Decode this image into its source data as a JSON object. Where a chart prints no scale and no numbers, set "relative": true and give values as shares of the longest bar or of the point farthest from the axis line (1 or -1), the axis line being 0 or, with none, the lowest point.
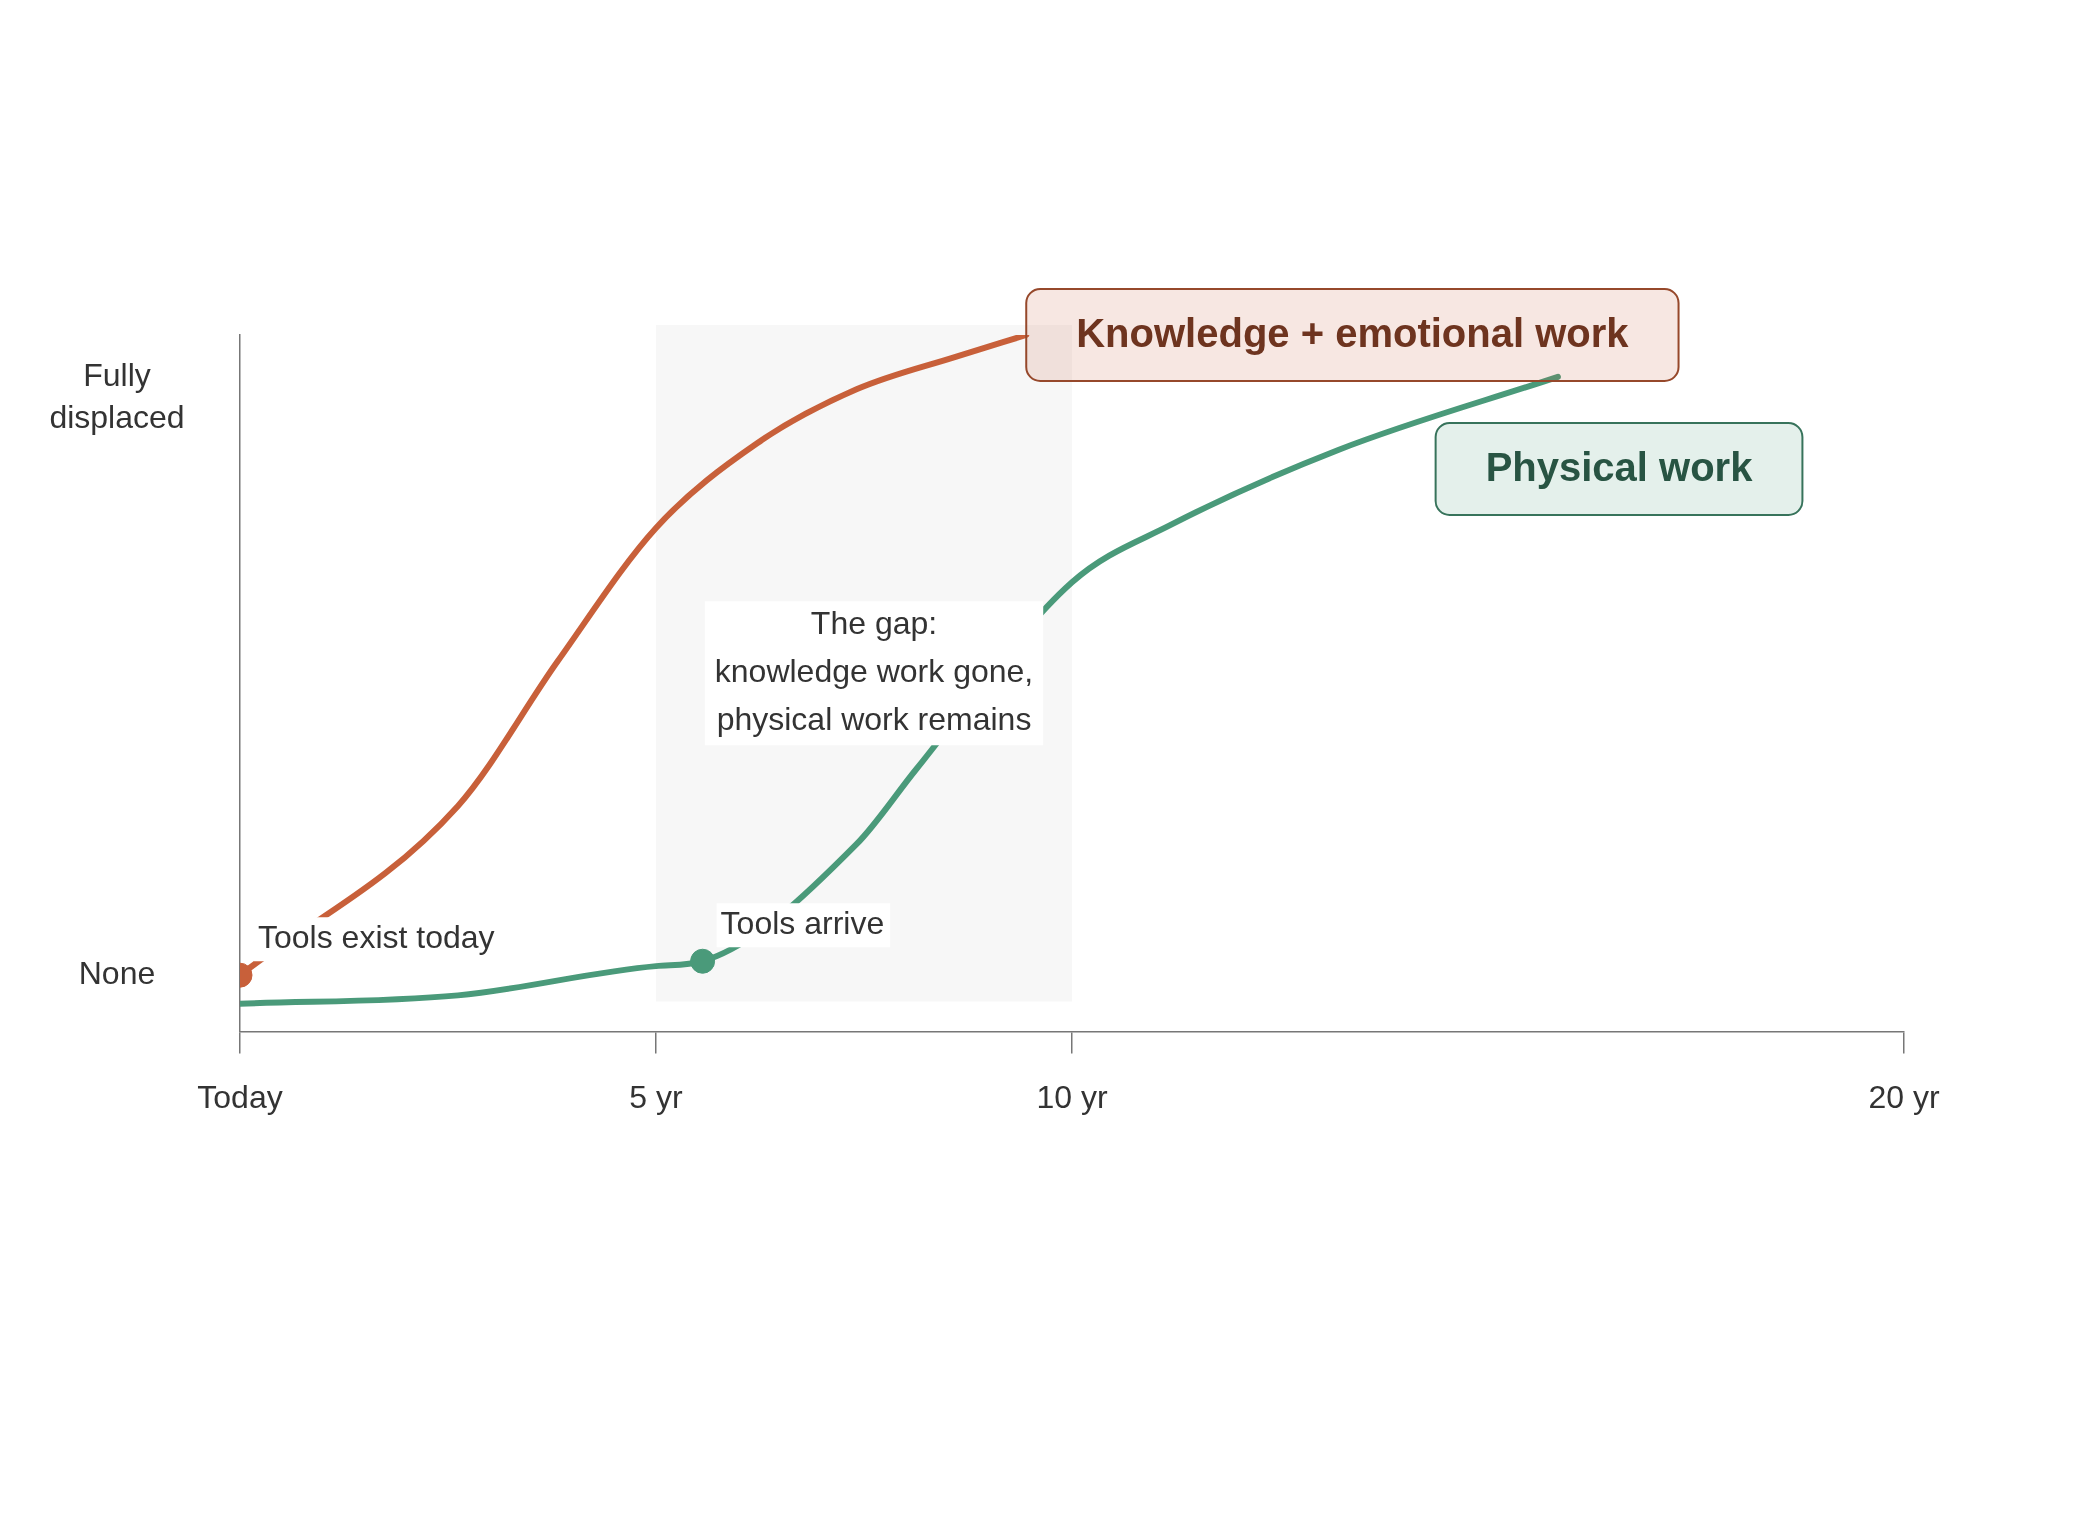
{
  "chart_data": {
    "type": "line",
    "relative": true,
    "xlim": [
      0,
      20
    ],
    "xticks": [
      {
        "value": 0,
        "label": "Today"
      },
      {
        "value": 5,
        "label": "5 yr"
      },
      {
        "value": 10,
        "label": "10 yr"
      },
      {
        "value": 20,
        "label": "20 yr"
      }
    ],
    "grid": false,
    "legend": false,
    "marker": "none",
    "line_style": "solid",
    "series": [
      {
        "name": "Knowledge + emotional work",
        "color": "#c8603a",
        "x": [
          0,
          2.62,
          3.82,
          5,
          6.22,
          7.41,
          8.61,
          9.45
        ],
        "values": [
          0.081,
          0.324,
          0.532,
          0.723,
          0.845,
          0.922,
          0.969,
          1
        ]
      },
      {
        "name": "Physical work",
        "color": "#4a9a7a",
        "x": [
          0,
          2.62,
          5,
          5.56,
          7.41,
          8.13,
          10,
          11.18,
          13.2,
          15.84
        ],
        "values": [
          0.04,
          0.052,
          0.094,
          0.101,
          0.269,
          0.377,
          0.645,
          0.727,
          0.835,
          0.94
        ]
      },
      {
        "type": "scatter",
        "marker": "circle",
        "color": "#c8603a",
        "x": [
          0
        ],
        "values": [
          0.081
        ]
      },
      {
        "type": "scatter",
        "marker": "circle",
        "color": "#4a9a7a",
        "x": [
          5.56
        ],
        "values": [
          0.101
        ]
      }
    ],
    "bands": [
      {
        "axis": "x",
        "from": 5,
        "to": 10,
        "label": "The gap:\nknowledge work gone,\nphysical work remains",
        "color": "#f7f7f7"
      }
    ],
    "annotations": [
      "None",
      "Fully displaced",
      {
        "text": "Tools exist today",
        "x": 0,
        "y": 0.081
      },
      {
        "text": "Tools arrive",
        "x": 5.56,
        "y": 0.101
      }
    ]
  }
}
